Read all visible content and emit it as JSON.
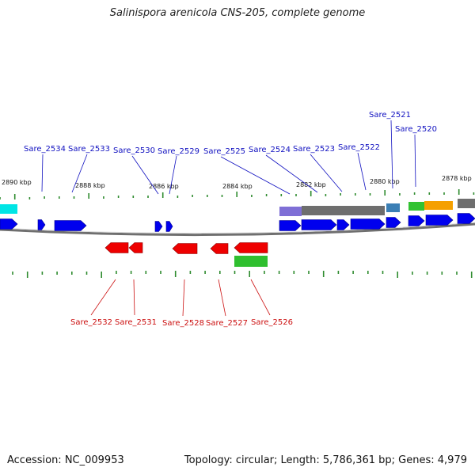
{
  "title": "Salinispora arenicola CNS-205, complete genome",
  "accession": "Accession: NC_009953",
  "summary": "Topology: circular; Length: 5,786,361 bp; Genes: 4,979",
  "colors": {
    "forward": "#0000ee",
    "reverse": "#ee0000",
    "tick": "#2e8b2e",
    "backbone": "#777777",
    "label_forward": "#1010c0",
    "label_reverse": "#cc1010"
  },
  "kbp_labels": [
    "2890 kbp",
    "2888 kbp",
    "2886 kbp",
    "2884 kbp",
    "2882 kbp",
    "2880 kbp",
    "2878 kbp"
  ],
  "forward_gene_labels": [
    "Sare_2534",
    "Sare_2533",
    "Sare_2530",
    "Sare_2529",
    "Sare_2525",
    "Sare_2524",
    "Sare_2523",
    "Sare_2522",
    "Sare_2521",
    "Sare_2520"
  ],
  "reverse_gene_labels": [
    "Sare_2532",
    "Sare_2531",
    "Sare_2528",
    "Sare_2527",
    "Sare_2526"
  ]
}
